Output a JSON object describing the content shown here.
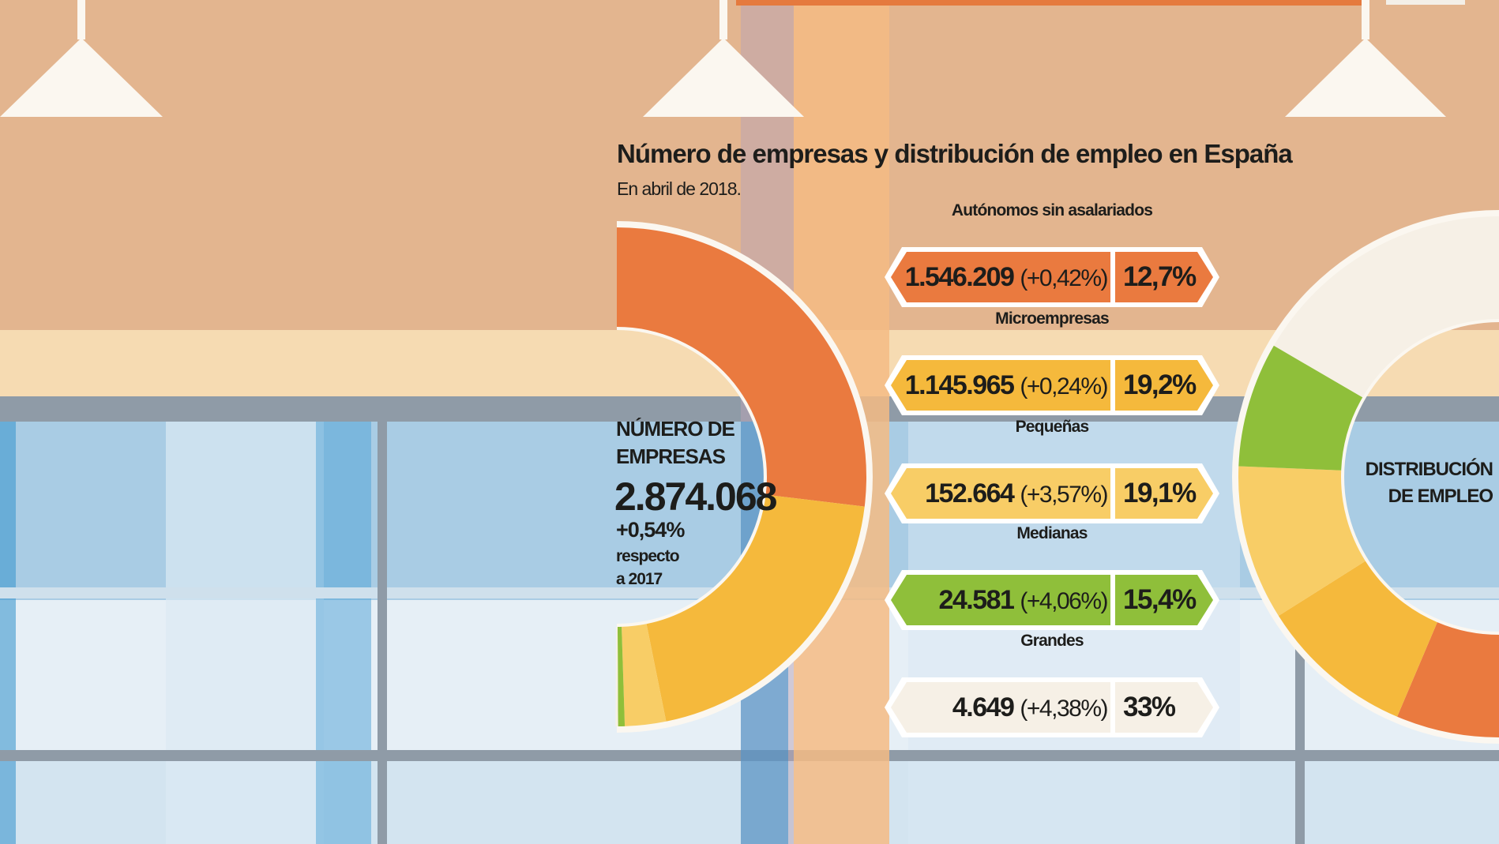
{
  "title": "Número de empresas y distribución de empleo en España",
  "subtitle": "En abril de 2018.",
  "left_panel": {
    "heading_line1": "NÚMERO DE",
    "heading_line2": "EMPRESAS",
    "total": "2.874.068",
    "change": "+0,54%",
    "note_line1": "respecto",
    "note_line2": "a 2017"
  },
  "right_panel": {
    "heading_line1": "DISTRIBUCIÓN",
    "heading_line2": "DE EMPLEO"
  },
  "categories": [
    {
      "label": "Autónomos sin asalariados",
      "count": "1.546.209",
      "change": "(+0,42%)",
      "employment": "12,7%",
      "color": "#ea7a3f"
    },
    {
      "label": "Microempresas",
      "count": "1.145.965",
      "change": "(+0,24%)",
      "employment": "19,2%",
      "color": "#f5b93c"
    },
    {
      "label": "Pequeñas",
      "count": "152.664",
      "change": "(+3,57%)",
      "employment": "19,1%",
      "color": "#f8cd66"
    },
    {
      "label": "Medianas",
      "count": "24.581",
      "change": "(+4,06%)",
      "employment": "15,4%",
      "color": "#8fbf3a"
    },
    {
      "label": "Grandes",
      "count": "4.649",
      "change": "(+4,38%)",
      "employment": "33%",
      "color": "#f6f0e6"
    }
  ],
  "chart_data": [
    {
      "type": "pie",
      "title": "NÚMERO DE EMPRESAS",
      "categories": [
        "Autónomos sin asalariados",
        "Microempresas",
        "Pequeñas",
        "Medianas",
        "Grandes"
      ],
      "values": [
        1546209,
        1145965,
        152664,
        24581,
        4649
      ],
      "total": 2874068
    },
    {
      "type": "pie",
      "title": "DISTRIBUCIÓN DE EMPLEO",
      "categories": [
        "Autónomos sin asalariados",
        "Microempresas",
        "Pequeñas",
        "Medianas",
        "Grandes"
      ],
      "values": [
        12.7,
        19.2,
        19.1,
        15.4,
        33
      ],
      "unit": "%"
    }
  ]
}
